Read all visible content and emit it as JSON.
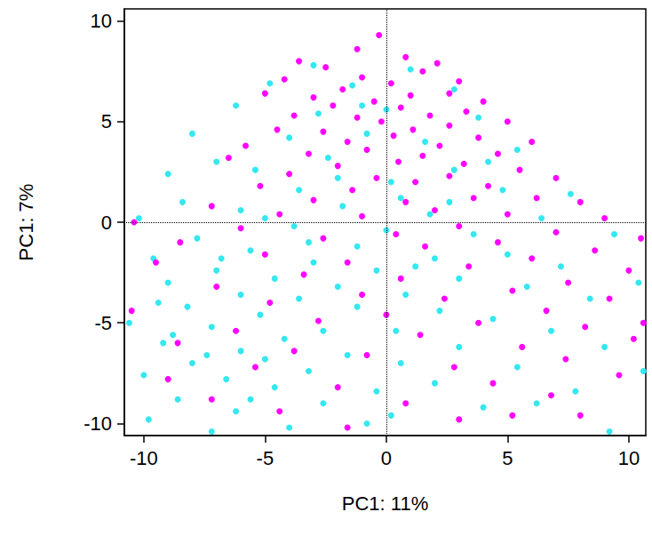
{
  "chart_data": {
    "type": "scatter",
    "x_label": "PC1: 11%",
    "y_label": "PC1: 7%",
    "xlim": [
      -10.8,
      10.7
    ],
    "ylim": [
      -10.6,
      10.6
    ],
    "xticks": [
      -10,
      -5,
      0,
      5,
      10
    ],
    "yticks": [
      -10,
      -5,
      0,
      5,
      10
    ],
    "hlines": [
      0
    ],
    "vlines": [
      0
    ],
    "grid": false,
    "series": [
      {
        "color": "#33e8f0",
        "marker": "circle",
        "values": [
          [
            -3.0,
            7.8
          ],
          [
            1.0,
            7.6
          ],
          [
            -4.8,
            6.9
          ],
          [
            -1.4,
            6.8
          ],
          [
            2.8,
            6.6
          ],
          [
            -6.2,
            5.8
          ],
          [
            0.0,
            5.6
          ],
          [
            -2.8,
            5.4
          ],
          [
            3.8,
            5.2
          ],
          [
            -8.0,
            4.4
          ],
          [
            -4.0,
            4.2
          ],
          [
            1.6,
            4.0
          ],
          [
            -0.8,
            4.4
          ],
          [
            5.4,
            3.6
          ],
          [
            -7.0,
            3.0
          ],
          [
            -2.4,
            3.2
          ],
          [
            2.8,
            2.6
          ],
          [
            -9.0,
            2.4
          ],
          [
            -5.4,
            2.6
          ],
          [
            0.2,
            2.0
          ],
          [
            4.8,
            1.6
          ],
          [
            -3.6,
            1.6
          ],
          [
            7.6,
            1.4
          ],
          [
            -8.4,
            1.0
          ],
          [
            -1.8,
            0.8
          ],
          [
            1.8,
            0.4
          ],
          [
            -6.0,
            0.6
          ],
          [
            6.4,
            0.2
          ],
          [
            -10.2,
            0.2
          ],
          [
            -3.8,
            -0.2
          ],
          [
            0.0,
            -0.4
          ],
          [
            3.6,
            -0.6
          ],
          [
            -7.8,
            -0.8
          ],
          [
            9.4,
            -0.6
          ],
          [
            -1.2,
            -1.2
          ],
          [
            -5.6,
            -1.4
          ],
          [
            5.0,
            -1.6
          ],
          [
            -9.6,
            -1.8
          ],
          [
            2.0,
            -1.8
          ],
          [
            -3.0,
            -2.0
          ],
          [
            7.2,
            -2.2
          ],
          [
            -7.0,
            -2.4
          ],
          [
            -0.4,
            -2.4
          ],
          [
            -4.6,
            -2.8
          ],
          [
            3.0,
            -2.8
          ],
          [
            -9.0,
            -3.0
          ],
          [
            -2.0,
            -3.2
          ],
          [
            10.4,
            -3.0
          ],
          [
            5.8,
            -3.2
          ],
          [
            -6.0,
            -3.6
          ],
          [
            0.8,
            -3.6
          ],
          [
            -3.6,
            -3.8
          ],
          [
            8.4,
            -3.8
          ],
          [
            -8.2,
            -4.2
          ],
          [
            -1.2,
            -4.2
          ],
          [
            2.2,
            -4.4
          ],
          [
            -5.2,
            -4.6
          ],
          [
            4.4,
            -4.8
          ],
          [
            -10.6,
            -5.0
          ],
          [
            -7.2,
            -5.2
          ],
          [
            -2.6,
            -5.4
          ],
          [
            0.4,
            -5.4
          ],
          [
            6.8,
            -5.4
          ],
          [
            -4.2,
            -5.8
          ],
          [
            -9.2,
            -6.0
          ],
          [
            -6.0,
            -6.4
          ],
          [
            3.0,
            -6.2
          ],
          [
            9.0,
            -6.2
          ],
          [
            -1.6,
            -6.6
          ],
          [
            -5.0,
            -6.8
          ],
          [
            -8.0,
            -7.0
          ],
          [
            0.6,
            -7.0
          ],
          [
            5.4,
            -7.2
          ],
          [
            -3.2,
            -7.4
          ],
          [
            -10.0,
            -7.6
          ],
          [
            -6.6,
            -7.8
          ],
          [
            10.6,
            -7.4
          ],
          [
            2.0,
            -8.0
          ],
          [
            -4.6,
            -8.2
          ],
          [
            -0.4,
            -8.4
          ],
          [
            7.8,
            -8.4
          ],
          [
            -8.6,
            -8.8
          ],
          [
            -2.6,
            -9.0
          ],
          [
            4.0,
            -9.2
          ],
          [
            -6.2,
            -9.4
          ],
          [
            0.2,
            -9.6
          ],
          [
            -9.8,
            -9.8
          ],
          [
            9.2,
            -10.4
          ],
          [
            -4.0,
            -10.2
          ],
          [
            -7.2,
            -10.4
          ],
          [
            6.2,
            -9.0
          ],
          [
            -0.8,
            -10.0
          ],
          [
            -9.4,
            -4.0
          ],
          [
            -6.8,
            -1.8
          ],
          [
            -5.0,
            0.2
          ],
          [
            -3.2,
            -1.0
          ],
          [
            -8.8,
            -5.6
          ],
          [
            -7.4,
            -6.6
          ],
          [
            -5.6,
            -8.8
          ],
          [
            1.2,
            -2.2
          ],
          [
            2.6,
            1.0
          ],
          [
            -2.0,
            2.2
          ],
          [
            0.6,
            1.2
          ],
          [
            4.2,
            3.0
          ],
          [
            -1.0,
            5.8
          ]
        ]
      },
      {
        "color": "#ff00ff",
        "marker": "circle",
        "values": [
          [
            -0.3,
            9.3
          ],
          [
            -1.2,
            8.6
          ],
          [
            0.8,
            8.2
          ],
          [
            -3.6,
            8.0
          ],
          [
            2.1,
            7.9
          ],
          [
            -2.5,
            7.7
          ],
          [
            1.5,
            7.5
          ],
          [
            -1.0,
            7.2
          ],
          [
            3.0,
            7.0
          ],
          [
            -4.2,
            7.1
          ],
          [
            0.2,
            6.9
          ],
          [
            -1.8,
            6.6
          ],
          [
            2.6,
            6.4
          ],
          [
            -3.0,
            6.2
          ],
          [
            1.0,
            6.3
          ],
          [
            4.0,
            6.0
          ],
          [
            -0.5,
            6.0
          ],
          [
            -5.0,
            6.4
          ],
          [
            -2.2,
            5.8
          ],
          [
            0.6,
            5.7
          ],
          [
            3.3,
            5.5
          ],
          [
            -3.8,
            5.3
          ],
          [
            1.8,
            5.3
          ],
          [
            -1.2,
            5.2
          ],
          [
            5.0,
            5.0
          ],
          [
            -0.2,
            5.0
          ],
          [
            2.6,
            4.8
          ],
          [
            -4.5,
            4.6
          ],
          [
            -2.6,
            4.5
          ],
          [
            1.1,
            4.6
          ],
          [
            0.3,
            4.3
          ],
          [
            3.8,
            4.2
          ],
          [
            -1.6,
            4.0
          ],
          [
            6.0,
            4.0
          ],
          [
            -5.8,
            3.8
          ],
          [
            2.2,
            3.8
          ],
          [
            -0.8,
            3.6
          ],
          [
            4.6,
            3.4
          ],
          [
            -3.2,
            3.4
          ],
          [
            1.5,
            3.3
          ],
          [
            0.5,
            3.0
          ],
          [
            -6.5,
            3.2
          ],
          [
            3.2,
            2.9
          ],
          [
            -2.0,
            2.8
          ],
          [
            5.5,
            2.6
          ],
          [
            -4.0,
            2.4
          ],
          [
            2.6,
            2.3
          ],
          [
            -0.4,
            2.2
          ],
          [
            7.0,
            2.2
          ],
          [
            1.2,
            2.0
          ],
          [
            -5.2,
            1.8
          ],
          [
            4.2,
            1.8
          ],
          [
            -1.4,
            1.6
          ],
          [
            3.6,
            1.2
          ],
          [
            6.2,
            1.2
          ],
          [
            -3.0,
            1.1
          ],
          [
            0.8,
            1.0
          ],
          [
            8.0,
            1.0
          ],
          [
            -7.2,
            0.8
          ],
          [
            2.0,
            0.6
          ],
          [
            5.0,
            0.4
          ],
          [
            -4.4,
            0.4
          ],
          [
            9.0,
            0.2
          ],
          [
            -1.0,
            0.3
          ],
          [
            3.0,
            -0.2
          ],
          [
            -6.0,
            -0.3
          ],
          [
            7.0,
            -0.5
          ],
          [
            0.4,
            -0.6
          ],
          [
            10.5,
            -0.8
          ],
          [
            -2.6,
            -0.8
          ],
          [
            4.6,
            -1.0
          ],
          [
            -8.5,
            -1.0
          ],
          [
            1.6,
            -1.2
          ],
          [
            8.6,
            -1.4
          ],
          [
            -5.0,
            -1.6
          ],
          [
            6.0,
            -1.8
          ],
          [
            -1.6,
            -2.0
          ],
          [
            3.4,
            -2.2
          ],
          [
            -9.5,
            -2.0
          ],
          [
            10.0,
            -2.4
          ],
          [
            -3.4,
            -2.6
          ],
          [
            0.6,
            -2.8
          ],
          [
            7.5,
            -3.0
          ],
          [
            -7.0,
            -3.2
          ],
          [
            5.2,
            -3.4
          ],
          [
            -1.0,
            -3.6
          ],
          [
            2.4,
            -3.8
          ],
          [
            9.2,
            -3.8
          ],
          [
            -4.8,
            -4.0
          ],
          [
            -10.5,
            -4.4
          ],
          [
            6.6,
            -4.4
          ],
          [
            0.0,
            -4.6
          ],
          [
            -2.8,
            -4.9
          ],
          [
            3.8,
            -5.0
          ],
          [
            8.2,
            -5.2
          ],
          [
            -6.2,
            -5.4
          ],
          [
            1.4,
            -5.6
          ],
          [
            10.2,
            -5.8
          ],
          [
            -8.6,
            -6.0
          ],
          [
            5.6,
            -6.2
          ],
          [
            -3.8,
            -6.4
          ],
          [
            -0.8,
            -6.6
          ],
          [
            7.4,
            -6.8
          ],
          [
            -5.4,
            -7.2
          ],
          [
            2.8,
            -7.2
          ],
          [
            9.6,
            -7.6
          ],
          [
            -9.0,
            -7.8
          ],
          [
            4.4,
            -8.0
          ],
          [
            -2.0,
            -8.2
          ],
          [
            6.8,
            -8.6
          ],
          [
            -7.2,
            -8.8
          ],
          [
            0.8,
            -9.0
          ],
          [
            -4.4,
            -9.4
          ],
          [
            8.0,
            -9.6
          ],
          [
            3.0,
            -9.8
          ],
          [
            -1.6,
            -10.2
          ],
          [
            5.2,
            -9.6
          ],
          [
            -10.4,
            0.0
          ],
          [
            10.6,
            -5.0
          ]
        ]
      }
    ]
  }
}
